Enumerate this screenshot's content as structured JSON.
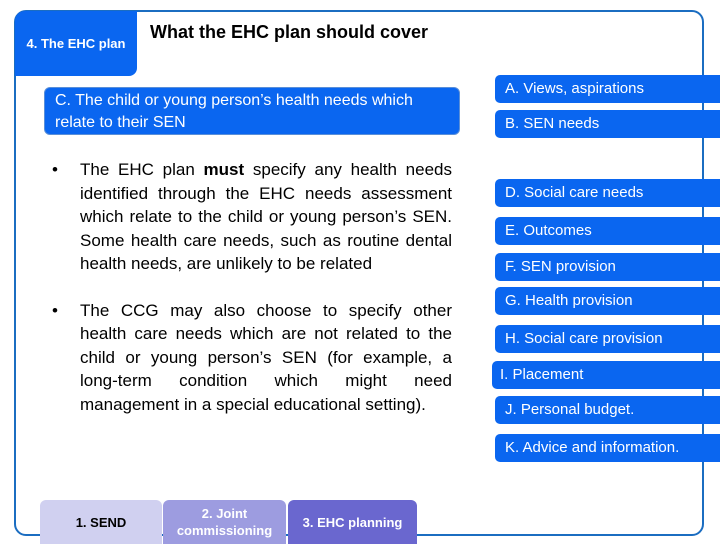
{
  "section_badge": "4. The EHC plan",
  "title": "What the EHC plan should cover",
  "current_section": "C. The child or young person’s health needs which relate to their SEN",
  "bullets": [
    {
      "before": "The EHC plan ",
      "bold": "must",
      "after": " specify any health needs identified through the EHC needs assessment which relate to the child or young person’s SEN. Some health care needs, such as routine dental health needs, are unlikely to be related"
    },
    {
      "text": "The CCG may also choose to specify other health care needs which are not related to the child or young person’s SEN (for example, a long-term condition which might need management in a special educational setting)."
    }
  ],
  "bullet_char": "•",
  "sections": [
    "A. Views, aspirations",
    "B. SEN needs",
    "D. Social care needs",
    "E. Outcomes",
    "F. SEN provision",
    "G. Health provision",
    "H. Social care provision",
    "I. Placement",
    "J. Personal budget.",
    "K. Advice and information."
  ],
  "tabs": [
    "1. SEND",
    "2. Joint commissioning",
    "3. EHC planning"
  ],
  "colors": {
    "accent": "#0a66f0",
    "frame": "#1b6dc1",
    "tab1": "#d0d0f0",
    "tab2": "#9d9ce0",
    "tab3": "#6a67cf"
  }
}
